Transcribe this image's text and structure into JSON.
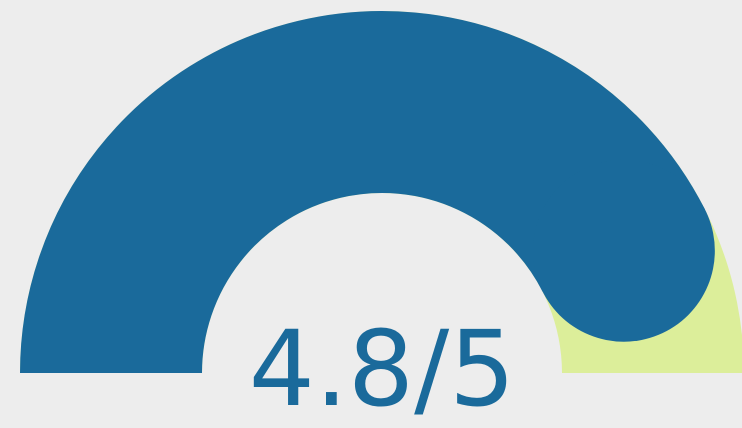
{
  "chart_data": {
    "type": "gauge",
    "values": [
      4.8
    ],
    "value_labels": [
      "4.8/5"
    ],
    "ylim": [
      0,
      5
    ],
    "color": "#1a6a9b",
    "track_color": "#dcee9a"
  }
}
